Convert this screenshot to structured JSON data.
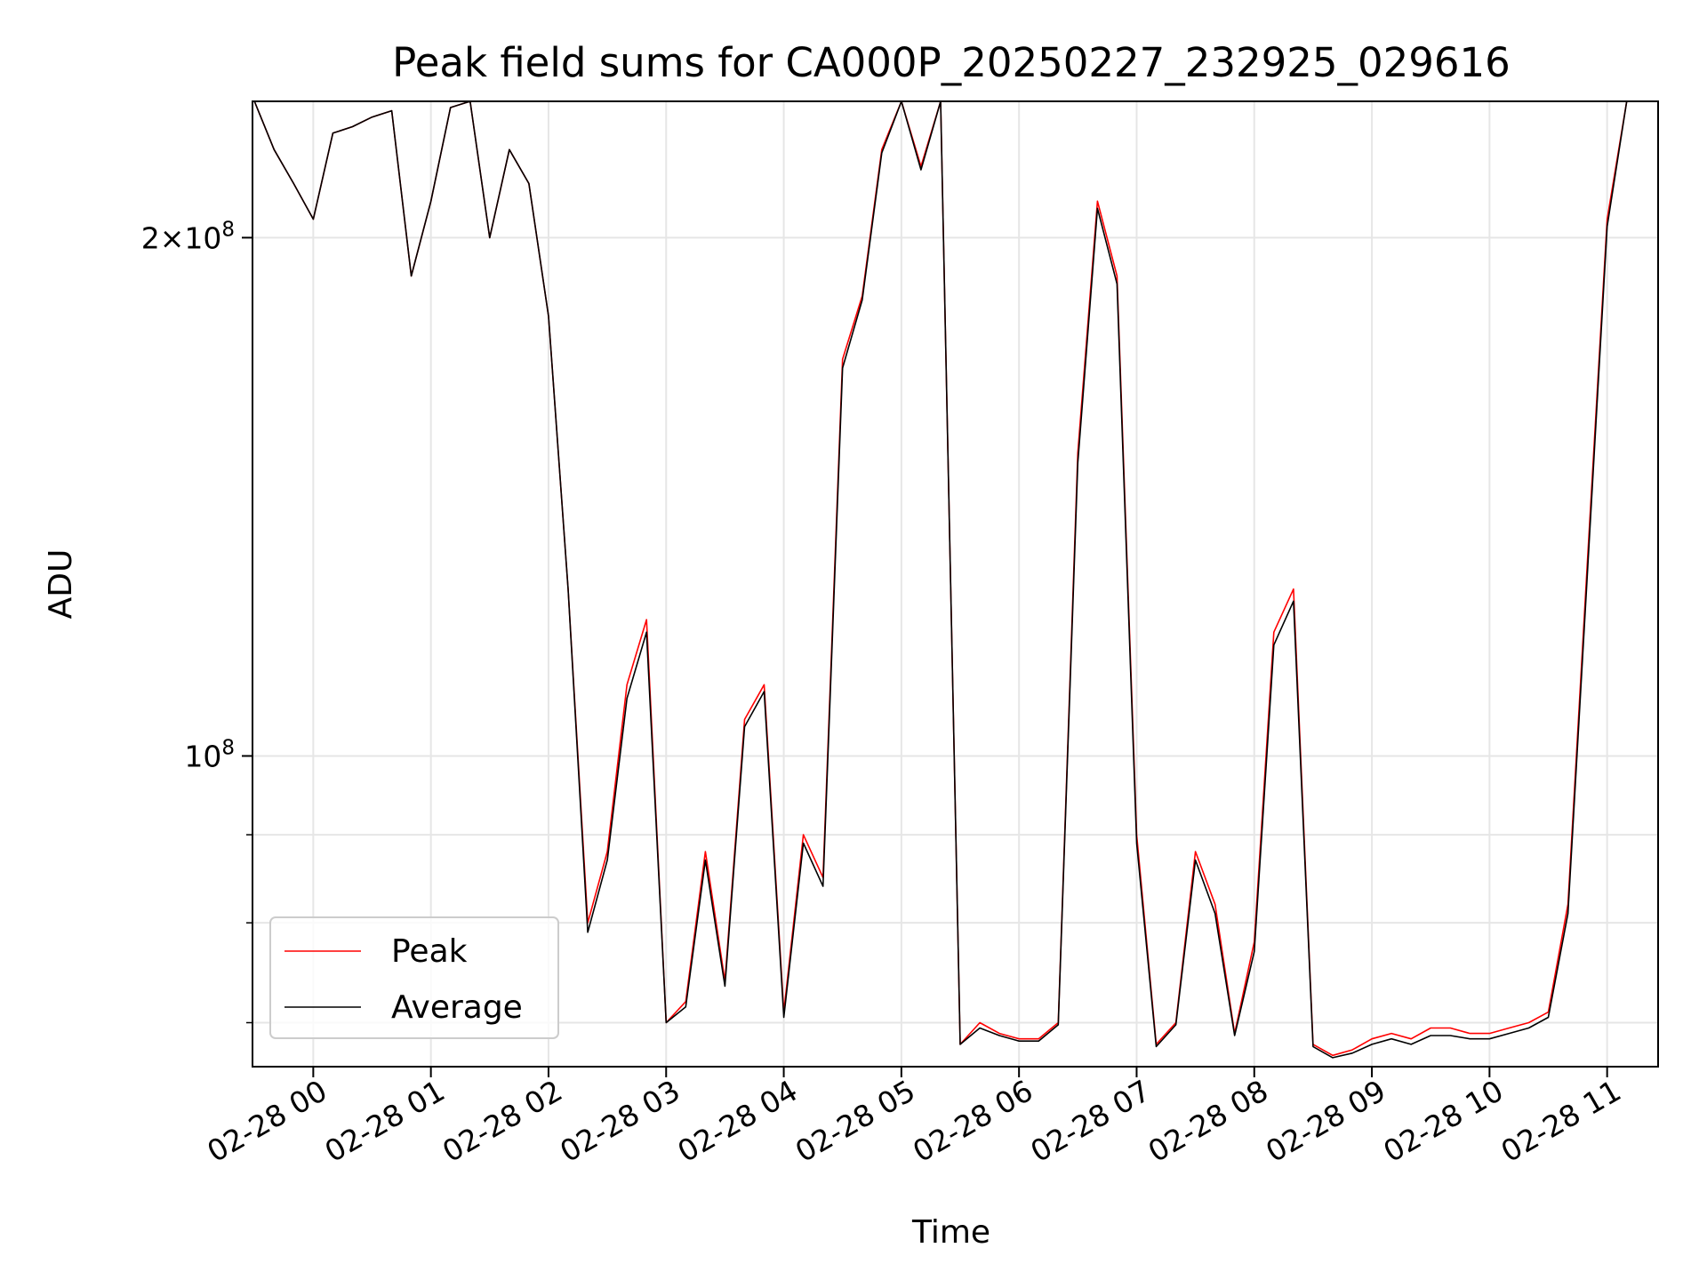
{
  "chart_data": {
    "type": "line",
    "title": "Peak field sums for CA000P_20250227_232925_029616",
    "xlabel": "Time",
    "ylabel": "ADU",
    "y_scale": "log",
    "ylim": [
      66000000,
      240000000
    ],
    "xlim": [
      "2025-02-27 23:29",
      "2025-02-28 11:26"
    ],
    "grid": true,
    "legend_position": "lower-left",
    "x_ticks": [
      "02-28 00",
      "02-28 01",
      "02-28 02",
      "02-28 03",
      "02-28 04",
      "02-28 05",
      "02-28 06",
      "02-28 07",
      "02-28 08",
      "02-28 09",
      "02-28 10",
      "02-28 11"
    ],
    "y_ticks": [
      {
        "label_base": "10",
        "label_exp": "8",
        "value": 100000000
      },
      {
        "label_base": "2×10",
        "label_exp": "8",
        "value": 200000000
      }
    ],
    "x_times": [
      "2025-02-27 23:30",
      "2025-02-27 23:40",
      "2025-02-27 23:50",
      "2025-02-28 00:00",
      "2025-02-28 00:10",
      "2025-02-28 00:20",
      "2025-02-28 00:30",
      "2025-02-28 00:40",
      "2025-02-28 00:50",
      "2025-02-28 01:00",
      "2025-02-28 01:10",
      "2025-02-28 01:20",
      "2025-02-28 01:30",
      "2025-02-28 01:40",
      "2025-02-28 01:50",
      "2025-02-28 02:00",
      "2025-02-28 02:10",
      "2025-02-28 02:20",
      "2025-02-28 02:30",
      "2025-02-28 02:40",
      "2025-02-28 02:50",
      "2025-02-28 03:00",
      "2025-02-28 03:10",
      "2025-02-28 03:20",
      "2025-02-28 03:30",
      "2025-02-28 03:40",
      "2025-02-28 03:50",
      "2025-02-28 04:00",
      "2025-02-28 04:10",
      "2025-02-28 04:20",
      "2025-02-28 04:30",
      "2025-02-28 04:40",
      "2025-02-28 04:50",
      "2025-02-28 05:00",
      "2025-02-28 05:10",
      "2025-02-28 05:20",
      "2025-02-28 05:30",
      "2025-02-28 05:40",
      "2025-02-28 05:50",
      "2025-02-28 06:00",
      "2025-02-28 06:10",
      "2025-02-28 06:20",
      "2025-02-28 06:30",
      "2025-02-28 06:40",
      "2025-02-28 06:50",
      "2025-02-28 07:00",
      "2025-02-28 07:10",
      "2025-02-28 07:20",
      "2025-02-28 07:30",
      "2025-02-28 07:40",
      "2025-02-28 07:50",
      "2025-02-28 08:00",
      "2025-02-28 08:10",
      "2025-02-28 08:20",
      "2025-02-28 08:30",
      "2025-02-28 08:40",
      "2025-02-28 08:50",
      "2025-02-28 09:00",
      "2025-02-28 09:10",
      "2025-02-28 09:20",
      "2025-02-28 09:30",
      "2025-02-28 09:40",
      "2025-02-28 09:50",
      "2025-02-28 10:00",
      "2025-02-28 10:10",
      "2025-02-28 10:20",
      "2025-02-28 10:30",
      "2025-02-28 10:40",
      "2025-02-28 10:50",
      "2025-02-28 11:00",
      "2025-02-28 11:10",
      "2025-02-28 11:20"
    ],
    "series": [
      {
        "name": "Peak",
        "color": "#ff0000",
        "values": [
          240000000,
          225000000,
          215000000,
          205000000,
          230000000,
          232000000,
          235000000,
          237000000,
          190000000,
          210000000,
          238000000,
          240000000,
          200000000,
          225000000,
          215000000,
          180000000,
          125000000,
          80000000,
          88000000,
          110000000,
          120000000,
          70000000,
          72000000,
          88000000,
          74000000,
          105000000,
          110000000,
          71000000,
          90000000,
          85000000,
          170000000,
          185000000,
          225000000,
          240000000,
          220000000,
          240000000,
          68000000,
          70000000,
          69000000,
          68500000,
          68500000,
          70000000,
          150000000,
          210000000,
          190000000,
          90000000,
          68000000,
          70000000,
          88000000,
          82000000,
          69000000,
          78000000,
          118000000,
          125000000,
          68000000,
          67000000,
          67500000,
          68500000,
          69000000,
          68500000,
          69500000,
          69500000,
          69000000,
          69000000,
          69500000,
          70000000,
          71000000,
          82000000,
          130000000,
          205000000,
          240000000,
          240000000
        ]
      },
      {
        "name": "Average",
        "color": "#000000",
        "values": [
          240000000,
          225000000,
          215000000,
          205000000,
          230000000,
          232000000,
          235000000,
          237000000,
          190000000,
          210000000,
          238000000,
          240000000,
          200000000,
          225000000,
          215000000,
          180000000,
          125000000,
          79000000,
          87000000,
          108000000,
          118000000,
          70000000,
          71500000,
          87000000,
          73500000,
          104000000,
          109000000,
          70500000,
          89000000,
          84000000,
          168000000,
          184000000,
          224000000,
          240000000,
          219000000,
          240000000,
          68000000,
          69500000,
          68800000,
          68300000,
          68300000,
          69800000,
          148000000,
          208000000,
          188000000,
          89000000,
          67800000,
          69800000,
          87000000,
          81000000,
          68800000,
          77000000,
          116000000,
          123000000,
          67800000,
          66800000,
          67200000,
          68000000,
          68500000,
          68000000,
          68800000,
          68800000,
          68500000,
          68500000,
          69000000,
          69500000,
          70500000,
          81000000,
          128000000,
          203000000,
          240000000,
          240000000
        ]
      }
    ]
  }
}
